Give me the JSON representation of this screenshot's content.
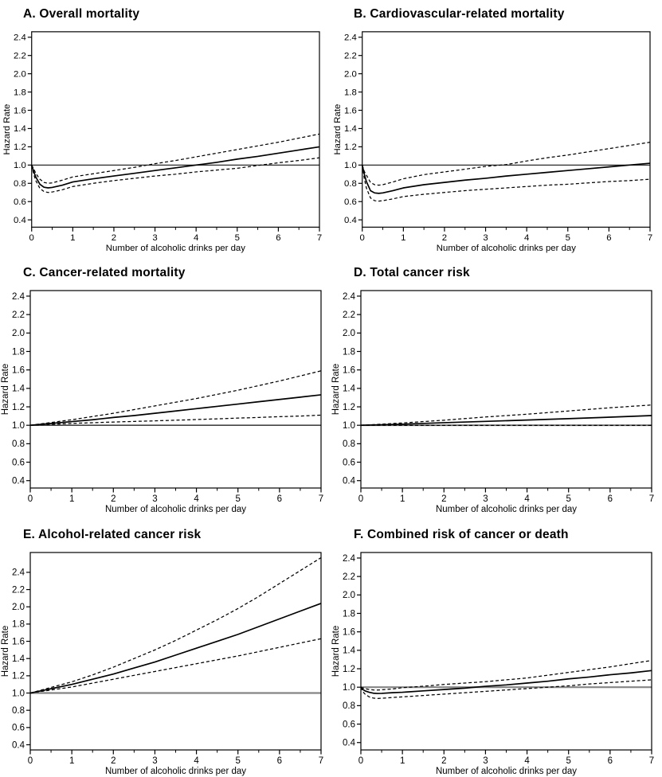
{
  "figure": {
    "ylabel": "Hazard Rate",
    "xlabel": "Number of alcoholic drinks per day",
    "line_color": "#000000",
    "background": "#ffffff"
  },
  "chart_data": [
    {
      "type": "line",
      "title": "A. Overall mortality",
      "xlabel": "Number of alcoholic drinks per day",
      "ylabel": "Hazard Rate",
      "xlim": [
        0,
        7
      ],
      "ylim": [
        0.32,
        2.46
      ],
      "xticks": [
        0,
        1,
        2,
        3,
        4,
        5,
        6,
        7
      ],
      "xticks_minor": [
        0.5,
        1.5,
        2.5,
        3.5,
        4.5,
        5.5,
        6.5
      ],
      "yticks": [
        0.4,
        0.6,
        0.8,
        1.0,
        1.2,
        1.4,
        1.6,
        1.8,
        2.0,
        2.2,
        2.4
      ],
      "grid": false,
      "legend": "none",
      "refline": {
        "y": 1.0,
        "color": "#2a2a2a",
        "width": 1.3
      },
      "series": [
        {
          "name": "estimate",
          "style": "solid",
          "x": [
            0,
            0.05,
            0.1,
            0.2,
            0.3,
            0.4,
            0.5,
            0.75,
            1,
            1.5,
            2,
            2.5,
            3,
            3.5,
            4,
            4.5,
            5,
            5.5,
            6,
            6.5,
            7
          ],
          "y": [
            1.0,
            0.93,
            0.87,
            0.79,
            0.757,
            0.75,
            0.755,
            0.78,
            0.815,
            0.85,
            0.88,
            0.91,
            0.94,
            0.97,
            1.0,
            1.03,
            1.065,
            1.095,
            1.13,
            1.165,
            1.2
          ]
        },
        {
          "name": "upper-ci",
          "style": "dashed",
          "x": [
            0,
            0.05,
            0.1,
            0.2,
            0.3,
            0.4,
            0.5,
            0.75,
            1,
            1.5,
            2,
            2.5,
            3,
            3.5,
            4,
            4.5,
            5,
            5.5,
            6,
            6.5,
            7
          ],
          "y": [
            1.0,
            0.96,
            0.91,
            0.845,
            0.81,
            0.8,
            0.805,
            0.835,
            0.87,
            0.905,
            0.94,
            0.975,
            1.015,
            1.05,
            1.09,
            1.13,
            1.17,
            1.21,
            1.25,
            1.295,
            1.34
          ]
        },
        {
          "name": "lower-ci",
          "style": "dashed",
          "x": [
            0,
            0.05,
            0.1,
            0.2,
            0.3,
            0.4,
            0.5,
            0.75,
            1,
            1.5,
            2,
            2.5,
            3,
            3.5,
            4,
            4.5,
            5,
            5.5,
            6,
            6.5,
            7
          ],
          "y": [
            1.0,
            0.9,
            0.83,
            0.745,
            0.71,
            0.7,
            0.705,
            0.73,
            0.765,
            0.8,
            0.83,
            0.855,
            0.88,
            0.9,
            0.925,
            0.945,
            0.965,
            0.995,
            1.025,
            1.05,
            1.08
          ]
        }
      ]
    },
    {
      "type": "line",
      "title": "B. Cardiovascular-related mortality",
      "xlabel": "Number of alcoholic drinks per day",
      "ylabel": "Hazard Rate",
      "xlim": [
        0,
        7
      ],
      "ylim": [
        0.32,
        2.46
      ],
      "xticks": [
        0,
        1,
        2,
        3,
        4,
        5,
        6,
        7
      ],
      "xticks_minor": [
        0.5,
        1.5,
        2.5,
        3.5,
        4.5,
        5.5,
        6.5
      ],
      "yticks": [
        0.4,
        0.6,
        0.8,
        1.0,
        1.2,
        1.4,
        1.6,
        1.8,
        2.0,
        2.2,
        2.4
      ],
      "grid": false,
      "legend": "none",
      "refline": {
        "y": 1.0,
        "color": "#2a2a2a",
        "width": 1.3
      },
      "series": [
        {
          "name": "estimate",
          "style": "solid",
          "x": [
            0,
            0.05,
            0.1,
            0.2,
            0.3,
            0.4,
            0.5,
            0.75,
            1,
            1.5,
            2,
            2.5,
            3,
            3.5,
            4,
            4.5,
            5,
            5.5,
            6,
            6.5,
            7
          ],
          "y": [
            1.0,
            0.9,
            0.82,
            0.72,
            0.695,
            0.69,
            0.695,
            0.72,
            0.75,
            0.785,
            0.81,
            0.835,
            0.855,
            0.88,
            0.9,
            0.92,
            0.94,
            0.96,
            0.98,
            1.0,
            1.02
          ]
        },
        {
          "name": "upper-ci",
          "style": "dashed",
          "x": [
            0,
            0.05,
            0.1,
            0.2,
            0.3,
            0.4,
            0.5,
            0.75,
            1,
            1.5,
            2,
            2.5,
            3,
            3.5,
            4,
            4.5,
            5,
            5.5,
            6,
            6.5,
            7
          ],
          "y": [
            1.0,
            0.93,
            0.89,
            0.81,
            0.785,
            0.78,
            0.785,
            0.815,
            0.85,
            0.895,
            0.925,
            0.955,
            0.985,
            1.005,
            1.045,
            1.08,
            1.11,
            1.145,
            1.18,
            1.215,
            1.25
          ]
        },
        {
          "name": "lower-ci",
          "style": "dashed",
          "x": [
            0,
            0.05,
            0.1,
            0.2,
            0.3,
            0.4,
            0.5,
            0.75,
            1,
            1.5,
            2,
            2.5,
            3,
            3.5,
            4,
            4.5,
            5,
            5.5,
            6,
            6.5,
            7
          ],
          "y": [
            1.0,
            0.85,
            0.75,
            0.64,
            0.61,
            0.605,
            0.61,
            0.63,
            0.655,
            0.68,
            0.7,
            0.72,
            0.735,
            0.75,
            0.765,
            0.78,
            0.79,
            0.805,
            0.82,
            0.83,
            0.845
          ]
        }
      ]
    },
    {
      "type": "line",
      "title": "C. Cancer-related mortality",
      "xlabel": "Number of alcoholic drinks per day",
      "ylabel": "Hazard Rate",
      "xlim": [
        0,
        7
      ],
      "ylim": [
        0.32,
        2.46
      ],
      "xticks": [
        0,
        1,
        2,
        3,
        4,
        5,
        6,
        7
      ],
      "xticks_minor": [
        0.5,
        1.5,
        2.5,
        3.5,
        4.5,
        5.5,
        6.5
      ],
      "yticks": [
        0.4,
        0.6,
        0.8,
        1.0,
        1.2,
        1.4,
        1.6,
        1.8,
        2.0,
        2.2,
        2.4
      ],
      "grid": false,
      "legend": "none",
      "refline": {
        "y": 1.0,
        "color": "#444444",
        "width": 1.6
      },
      "series": [
        {
          "name": "estimate",
          "style": "solid",
          "x": [
            0,
            0.5,
            1,
            1.5,
            2,
            2.5,
            3,
            3.5,
            4,
            4.5,
            5,
            5.5,
            6,
            6.5,
            7
          ],
          "y": [
            1.0,
            1.02,
            1.04,
            1.06,
            1.085,
            1.105,
            1.13,
            1.155,
            1.18,
            1.205,
            1.23,
            1.255,
            1.28,
            1.305,
            1.33
          ]
        },
        {
          "name": "upper-ci",
          "style": "dashed",
          "x": [
            0,
            0.5,
            1,
            1.5,
            2,
            2.5,
            3,
            3.5,
            4,
            4.5,
            5,
            5.5,
            6,
            6.5,
            7
          ],
          "y": [
            1.0,
            1.03,
            1.06,
            1.095,
            1.13,
            1.17,
            1.21,
            1.25,
            1.29,
            1.335,
            1.38,
            1.43,
            1.48,
            1.535,
            1.59
          ]
        },
        {
          "name": "lower-ci",
          "style": "dashed",
          "x": [
            0,
            0.5,
            1,
            1.5,
            2,
            2.5,
            3,
            3.5,
            4,
            4.5,
            5,
            5.5,
            6,
            6.5,
            7
          ],
          "y": [
            1.0,
            1.01,
            1.02,
            1.028,
            1.035,
            1.042,
            1.048,
            1.055,
            1.062,
            1.07,
            1.078,
            1.085,
            1.093,
            1.1,
            1.11
          ]
        }
      ]
    },
    {
      "type": "line",
      "title": "D. Total cancer risk",
      "xlabel": "Number of alcoholic drinks per day",
      "ylabel": "Hazard Rate",
      "xlim": [
        0,
        7
      ],
      "ylim": [
        0.32,
        2.46
      ],
      "xticks": [
        0,
        1,
        2,
        3,
        4,
        5,
        6,
        7
      ],
      "xticks_minor": [
        0.5,
        1.5,
        2.5,
        3.5,
        4.5,
        5.5,
        6.5
      ],
      "yticks": [
        0.4,
        0.6,
        0.8,
        1.0,
        1.2,
        1.4,
        1.6,
        1.8,
        2.0,
        2.2,
        2.4
      ],
      "grid": false,
      "legend": "none",
      "refline": {
        "y": 1.0,
        "color": "#666666",
        "width": 1.8
      },
      "series": [
        {
          "name": "estimate",
          "style": "solid",
          "x": [
            0,
            1,
            2,
            3,
            4,
            5,
            6,
            7
          ],
          "y": [
            1.0,
            1.012,
            1.028,
            1.042,
            1.057,
            1.072,
            1.088,
            1.105
          ]
        },
        {
          "name": "upper-ci",
          "style": "dashed",
          "x": [
            0,
            1,
            2,
            3,
            4,
            5,
            6,
            7
          ],
          "y": [
            1.0,
            1.025,
            1.055,
            1.09,
            1.12,
            1.155,
            1.19,
            1.22
          ]
        },
        {
          "name": "lower-ci",
          "style": "dashed",
          "x": [
            0,
            1,
            2,
            3,
            4,
            5,
            6,
            7
          ],
          "y": [
            1.0,
            0.999,
            0.998,
            0.998,
            0.998,
            0.998,
            0.998,
            0.998
          ]
        }
      ]
    },
    {
      "type": "line",
      "title": "E. Alcohol-related cancer risk",
      "xlabel": "Number of alcoholic drinks per day",
      "ylabel": "Hazard Rate",
      "xlim": [
        0,
        7
      ],
      "ylim": [
        0.34,
        2.63
      ],
      "xticks": [
        0,
        1,
        2,
        3,
        4,
        5,
        6,
        7
      ],
      "xticks_minor": [
        0.5,
        1.5,
        2.5,
        3.5,
        4.5,
        5.5,
        6.5
      ],
      "yticks": [
        0.4,
        0.6,
        0.8,
        1.0,
        1.2,
        1.4,
        1.6,
        1.8,
        2.0,
        2.2,
        2.4
      ],
      "grid": false,
      "legend": "none",
      "refline": {
        "y": 1.0,
        "color": "#858585",
        "width": 2.2
      },
      "series": [
        {
          "name": "estimate",
          "style": "solid",
          "x": [
            0,
            0.5,
            1,
            1.5,
            2,
            2.5,
            3,
            3.5,
            4,
            4.5,
            5,
            5.5,
            6,
            6.5,
            7
          ],
          "y": [
            1.0,
            1.05,
            1.1,
            1.16,
            1.22,
            1.29,
            1.36,
            1.44,
            1.52,
            1.6,
            1.68,
            1.77,
            1.86,
            1.95,
            2.04
          ]
        },
        {
          "name": "upper-ci",
          "style": "dashed",
          "x": [
            0,
            0.5,
            1,
            1.5,
            2,
            2.5,
            3,
            3.5,
            4,
            4.5,
            5,
            5.5,
            6,
            6.5,
            7
          ],
          "y": [
            1.0,
            1.065,
            1.13,
            1.21,
            1.3,
            1.4,
            1.5,
            1.61,
            1.73,
            1.85,
            1.98,
            2.12,
            2.27,
            2.42,
            2.57
          ]
        },
        {
          "name": "lower-ci",
          "style": "dashed",
          "x": [
            0,
            0.5,
            1,
            1.5,
            2,
            2.5,
            3,
            3.5,
            4,
            4.5,
            5,
            5.5,
            6,
            6.5,
            7
          ],
          "y": [
            1.0,
            1.035,
            1.07,
            1.115,
            1.16,
            1.205,
            1.25,
            1.295,
            1.34,
            1.385,
            1.43,
            1.48,
            1.53,
            1.58,
            1.63
          ]
        }
      ]
    },
    {
      "type": "line",
      "title": "F. Combined risk of cancer or death",
      "xlabel": "Number of alcoholic drinks per day",
      "ylabel": "Hazard Rate",
      "xlim": [
        0,
        7
      ],
      "ylim": [
        0.32,
        2.46
      ],
      "xticks": [
        0,
        1,
        2,
        3,
        4,
        5,
        6,
        7
      ],
      "xticks_minor": [
        0.5,
        1.5,
        2.5,
        3.5,
        4.5,
        5.5,
        6.5
      ],
      "yticks": [
        0.4,
        0.6,
        0.8,
        1.0,
        1.2,
        1.4,
        1.6,
        1.8,
        2.0,
        2.2,
        2.4
      ],
      "grid": false,
      "legend": "none",
      "refline": {
        "y": 1.0,
        "color": "#858585",
        "width": 2.2
      },
      "series": [
        {
          "name": "estimate",
          "style": "solid",
          "x": [
            0,
            0.05,
            0.1,
            0.2,
            0.3,
            0.4,
            0.5,
            0.75,
            1,
            1.5,
            2,
            2.5,
            3,
            3.5,
            4,
            4.5,
            5,
            5.5,
            6,
            6.5,
            7
          ],
          "y": [
            1.0,
            0.975,
            0.96,
            0.945,
            0.935,
            0.932,
            0.933,
            0.94,
            0.945,
            0.96,
            0.975,
            0.99,
            1.01,
            1.025,
            1.045,
            1.065,
            1.09,
            1.11,
            1.135,
            1.155,
            1.18
          ]
        },
        {
          "name": "upper-ci",
          "style": "dashed",
          "x": [
            0,
            0.05,
            0.1,
            0.2,
            0.3,
            0.4,
            0.5,
            0.75,
            1,
            1.5,
            2,
            2.5,
            3,
            3.5,
            4,
            4.5,
            5,
            5.5,
            6,
            6.5,
            7
          ],
          "y": [
            1.0,
            0.992,
            0.985,
            0.975,
            0.97,
            0.969,
            0.972,
            0.98,
            0.995,
            1.01,
            1.03,
            1.045,
            1.06,
            1.08,
            1.1,
            1.13,
            1.16,
            1.19,
            1.22,
            1.255,
            1.29
          ]
        },
        {
          "name": "lower-ci",
          "style": "dashed",
          "x": [
            0,
            0.05,
            0.1,
            0.2,
            0.3,
            0.4,
            0.5,
            0.75,
            1,
            1.5,
            2,
            2.5,
            3,
            3.5,
            4,
            4.5,
            5,
            5.5,
            6,
            6.5,
            7
          ],
          "y": [
            1.0,
            0.95,
            0.925,
            0.895,
            0.882,
            0.878,
            0.88,
            0.888,
            0.895,
            0.91,
            0.925,
            0.94,
            0.955,
            0.97,
            0.985,
            1.0,
            1.015,
            1.035,
            1.05,
            1.065,
            1.08
          ]
        }
      ]
    }
  ]
}
